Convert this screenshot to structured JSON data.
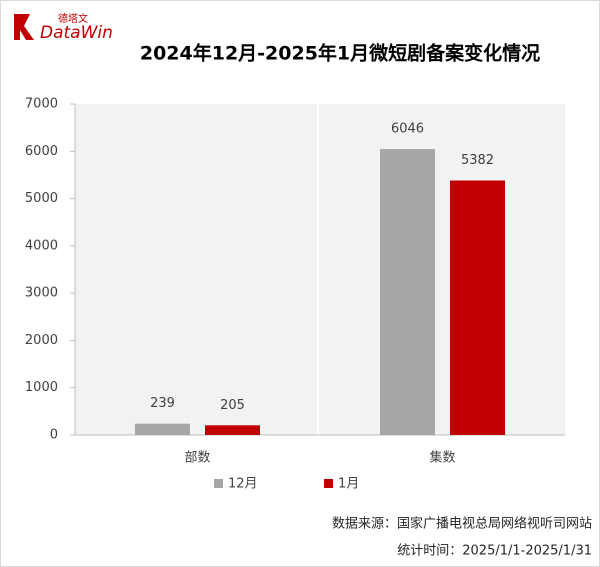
{
  "logo": {
    "cn": "德塔文",
    "brand": "DataWin"
  },
  "chart_data": {
    "type": "bar",
    "title": "2024年12月-2025年1月微短剧备案变化情况",
    "categories": [
      "部数",
      "集数"
    ],
    "series": [
      {
        "name": "12月",
        "color": "#a6a6a6",
        "values": [
          239,
          6046
        ]
      },
      {
        "name": "1月",
        "color": "#c00000",
        "values": [
          205,
          5382
        ]
      }
    ],
    "ylim": [
      0,
      7000
    ],
    "yticks": [
      0,
      1000,
      2000,
      3000,
      4000,
      5000,
      6000,
      7000
    ],
    "grid": false,
    "legend": "bottom",
    "notes": [
      "数据来源：国家广播电视总局网络视听司网站",
      "统计时间：2025/1/1-2025/1/31"
    ]
  }
}
